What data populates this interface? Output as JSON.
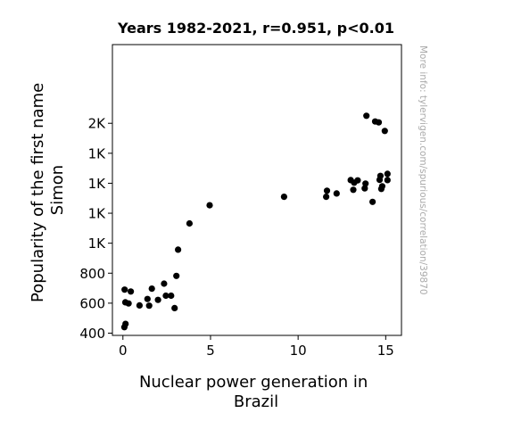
{
  "chart_data": {
    "type": "scatter",
    "title": "Years 1982-2021, r=0.951, p<0.01",
    "xlabel": [
      "Nuclear power generation in",
      "Brazil"
    ],
    "ylabel": [
      "Popularity of the first name",
      "Simon"
    ],
    "watermark": "More info: tylervigen.com/spurious/correlation/39870",
    "xlim": [
      -0.6,
      15.9
    ],
    "ylim": [
      385,
      2325
    ],
    "grid": false,
    "marker_color": "#000000",
    "x_ticks": [
      {
        "value": 0,
        "label": "0"
      },
      {
        "value": 5,
        "label": "5"
      },
      {
        "value": 10,
        "label": "10"
      },
      {
        "value": 15,
        "label": "15"
      }
    ],
    "y_ticks": [
      {
        "value": 400,
        "label": "400"
      },
      {
        "value": 600,
        "label": "600"
      },
      {
        "value": 800,
        "label": "800"
      },
      {
        "value": 1000,
        "label": "1K"
      },
      {
        "value": 1200,
        "label": "1K"
      },
      {
        "value": 1400,
        "label": "1K"
      },
      {
        "value": 1600,
        "label": "1K"
      },
      {
        "value": 1800,
        "label": "2K"
      }
    ],
    "points": [
      {
        "x": 0.08,
        "y": 440
      },
      {
        "x": 0.15,
        "y": 462
      },
      {
        "x": 0.1,
        "y": 690
      },
      {
        "x": 0.14,
        "y": 606
      },
      {
        "x": 0.32,
        "y": 598
      },
      {
        "x": 0.45,
        "y": 678
      },
      {
        "x": 0.95,
        "y": 585
      },
      {
        "x": 1.4,
        "y": 628
      },
      {
        "x": 1.5,
        "y": 583
      },
      {
        "x": 1.65,
        "y": 697
      },
      {
        "x": 2.0,
        "y": 622
      },
      {
        "x": 2.35,
        "y": 730
      },
      {
        "x": 2.45,
        "y": 650
      },
      {
        "x": 2.75,
        "y": 650
      },
      {
        "x": 2.95,
        "y": 567
      },
      {
        "x": 3.05,
        "y": 782
      },
      {
        "x": 3.15,
        "y": 957
      },
      {
        "x": 3.8,
        "y": 1132
      },
      {
        "x": 4.95,
        "y": 1253
      },
      {
        "x": 9.2,
        "y": 1310
      },
      {
        "x": 11.6,
        "y": 1310
      },
      {
        "x": 11.65,
        "y": 1350
      },
      {
        "x": 12.2,
        "y": 1332
      },
      {
        "x": 13.0,
        "y": 1421
      },
      {
        "x": 13.15,
        "y": 1356
      },
      {
        "x": 13.2,
        "y": 1404
      },
      {
        "x": 13.4,
        "y": 1419
      },
      {
        "x": 13.8,
        "y": 1366
      },
      {
        "x": 13.85,
        "y": 1398
      },
      {
        "x": 13.9,
        "y": 1850
      },
      {
        "x": 14.25,
        "y": 1276
      },
      {
        "x": 14.4,
        "y": 1812
      },
      {
        "x": 14.6,
        "y": 1806
      },
      {
        "x": 14.65,
        "y": 1423
      },
      {
        "x": 14.7,
        "y": 1449
      },
      {
        "x": 14.75,
        "y": 1362
      },
      {
        "x": 14.8,
        "y": 1380
      },
      {
        "x": 14.95,
        "y": 1749
      },
      {
        "x": 15.1,
        "y": 1421
      },
      {
        "x": 15.1,
        "y": 1463
      }
    ]
  }
}
